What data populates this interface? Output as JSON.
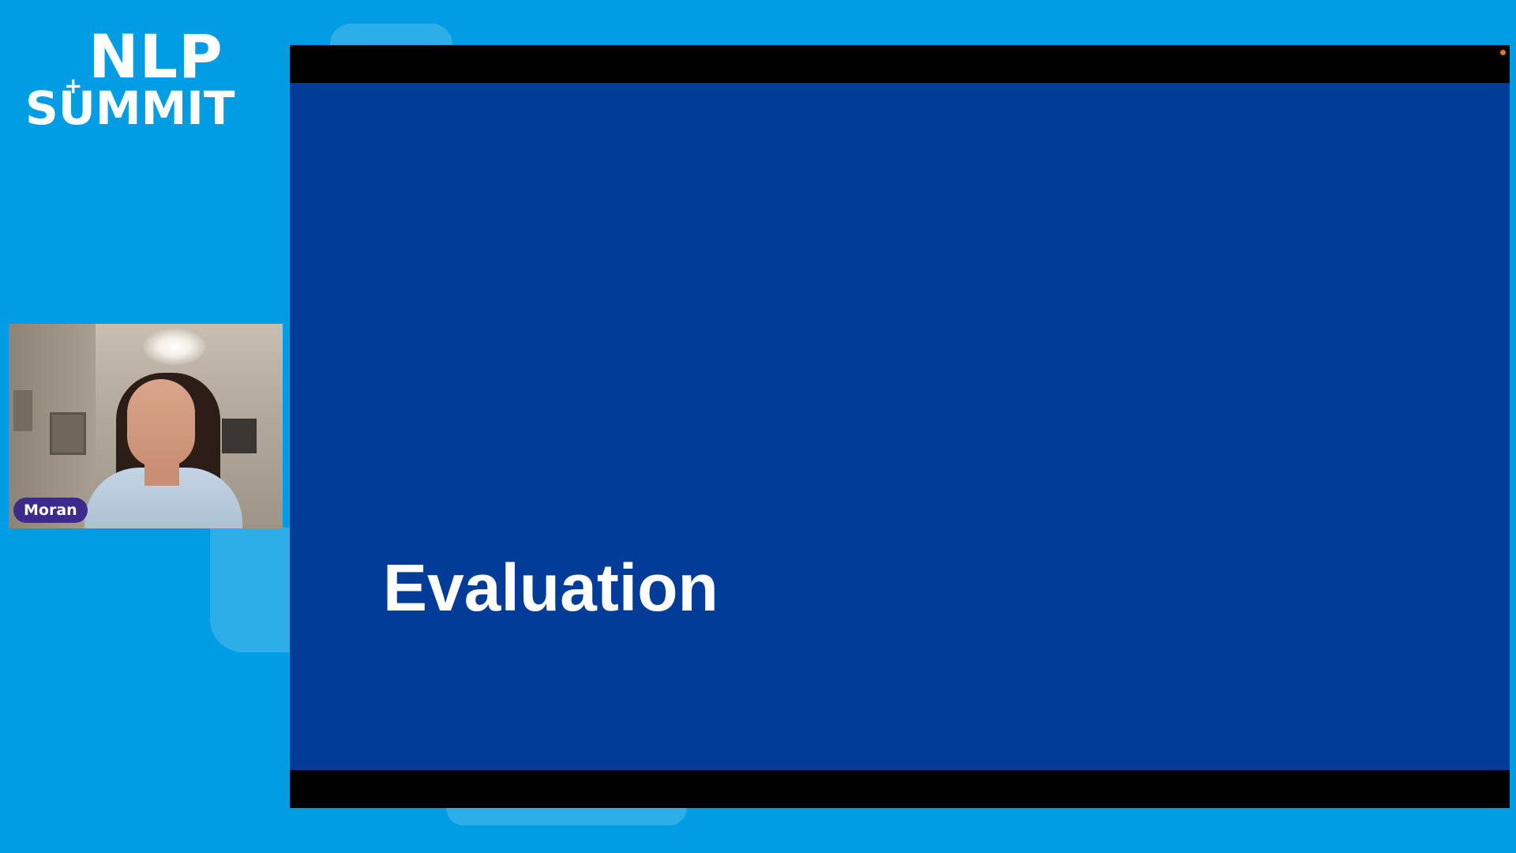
{
  "branding": {
    "logo_line1": "NLP",
    "logo_line2": "SUMMIT",
    "logo_plus": "+"
  },
  "speaker": {
    "name": "Moran"
  },
  "slide": {
    "title": "Evaluation"
  },
  "colors": {
    "page_background": "#009de4",
    "slide_background": "#013c98",
    "letterbox": "#000000",
    "name_tag_background": "#3d2a8a",
    "recording_indicator": "#e0791e"
  },
  "icons": {
    "recording_indicator": "recording-dot-icon"
  }
}
